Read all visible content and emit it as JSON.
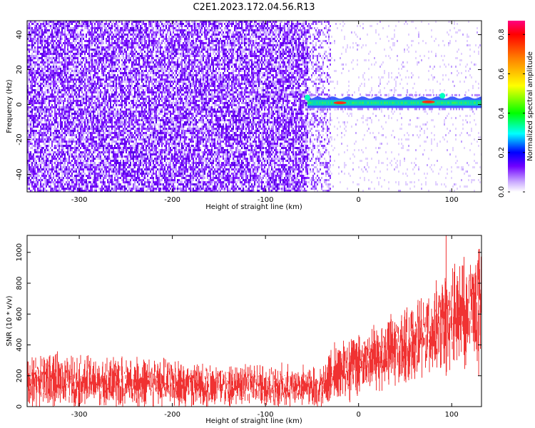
{
  "figure": {
    "title": "C2E1.2023.172.04.56.R13"
  },
  "chart_data": [
    {
      "type": "heatmap",
      "xlabel": "Height of straight line (km)",
      "ylabel": "Frequency (Hz)",
      "xlim": [
        -356,
        132
      ],
      "ylim": [
        -50,
        48
      ],
      "xticks": [
        -300,
        -200,
        -100,
        0,
        100
      ],
      "yticks": [
        -40,
        -20,
        0,
        20,
        40
      ],
      "colorbar": {
        "label": "Normalized spectral amplitude",
        "range": [
          0,
          0.87
        ],
        "ticks": [
          0.0,
          0.2,
          0.4,
          0.6,
          0.8
        ]
      },
      "features": {
        "noise_floor_x_range": [
          -356,
          -55
        ],
        "signal_band_x_range": [
          -55,
          132
        ],
        "signal_band_center_hz": 1,
        "signal_peaks": [
          {
            "x": -55,
            "freq_hz": 4,
            "amplitude": 0.4
          },
          {
            "x": -20,
            "freq_hz": 1,
            "amplitude": 0.85
          },
          {
            "x": 75,
            "freq_hz": 1.5,
            "amplitude": 0.85
          },
          {
            "x": 90,
            "freq_hz": 5,
            "amplitude": 0.3
          }
        ]
      }
    },
    {
      "type": "line",
      "xlabel": "Height of straight line (km)",
      "ylabel": "SNR (10 * v/v)",
      "xlim": [
        -356,
        132
      ],
      "ylim": [
        0,
        1110
      ],
      "xticks": [
        -300,
        -200,
        -100,
        0,
        100
      ],
      "yticks": [
        0,
        200,
        400,
        600,
        800,
        1000
      ],
      "color": "#f03232",
      "envelope": {
        "x": [
          -356,
          -300,
          -200,
          -100,
          -50,
          -35,
          -30,
          0,
          50,
          100,
          132
        ],
        "lower": [
          0,
          0,
          0,
          0,
          0,
          0,
          20,
          60,
          150,
          250,
          300
        ],
        "upper": [
          350,
          330,
          300,
          270,
          260,
          270,
          400,
          500,
          620,
          900,
          1000
        ]
      },
      "spikes": [
        {
          "x": 94,
          "value": 1110
        },
        {
          "x": 129,
          "value": 1020
        }
      ]
    }
  ]
}
